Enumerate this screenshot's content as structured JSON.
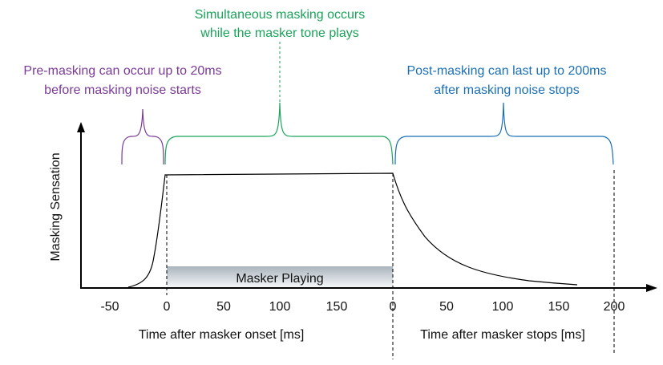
{
  "annotations": {
    "simultaneous": {
      "line1": "Simultaneous masking occurs",
      "line2": "while the masker tone plays",
      "color": "#1aa35a"
    },
    "pre": {
      "line1": "Pre-masking can occur up to 20ms",
      "line2": "before masking noise starts",
      "color": "#7a3a96"
    },
    "post": {
      "line1": "Post-masking can last up to 200ms",
      "line2": "after masking noise stops",
      "color": "#1a6fb5"
    }
  },
  "axes": {
    "ylabel": "Masking Sensation",
    "xlabel_onset": "Time after masker onset [ms]",
    "xlabel_stops": "Time after masker stops [ms]",
    "ticks_onset": [
      "-50",
      "0",
      "50",
      "100",
      "150",
      "0"
    ],
    "ticks_stops": [
      "50",
      "100",
      "150",
      "200"
    ]
  },
  "masker_bar": {
    "label": "Masker Playing"
  }
}
